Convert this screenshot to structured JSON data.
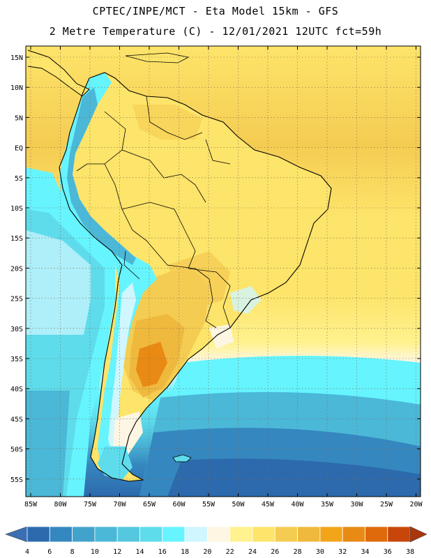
{
  "header": {
    "line1": "CPTEC/INPE/MCT -  Eta Model 15km - GFS",
    "line2": "2 Metre Temperature (C) - 12/01/2021 12UTC fct=59h"
  },
  "map": {
    "region": "South America",
    "lat_ticks": [
      "15N",
      "10N",
      "5N",
      "EQ",
      "5S",
      "10S",
      "15S",
      "20S",
      "25S",
      "30S",
      "35S",
      "40S",
      "45S",
      "50S",
      "55S"
    ],
    "lon_ticks": [
      "85W",
      "80W",
      "75W",
      "70W",
      "65W",
      "60W",
      "55W",
      "50W",
      "45W",
      "40W",
      "35W",
      "30W",
      "25W",
      "20W"
    ],
    "grid": "dotted"
  },
  "legend": {
    "labels": [
      "4",
      "6",
      "8",
      "10",
      "12",
      "14",
      "16",
      "18",
      "20",
      "22",
      "24",
      "26",
      "28",
      "30",
      "32",
      "34",
      "36",
      "38"
    ],
    "colors": [
      "#2c6aad",
      "#3587c0",
      "#41a3cc",
      "#4bb8d8",
      "#55c8e0",
      "#5edcec",
      "#66f4ff",
      "#d0f6ff",
      "#fdf6e2",
      "#fff28f",
      "#fde46a",
      "#f5cc52",
      "#efb93e",
      "#f3a51a",
      "#e88a14",
      "#de6a0b",
      "#c9460a"
    ],
    "under_color": "#3a6fb3",
    "over_color": "#a8370d"
  }
}
